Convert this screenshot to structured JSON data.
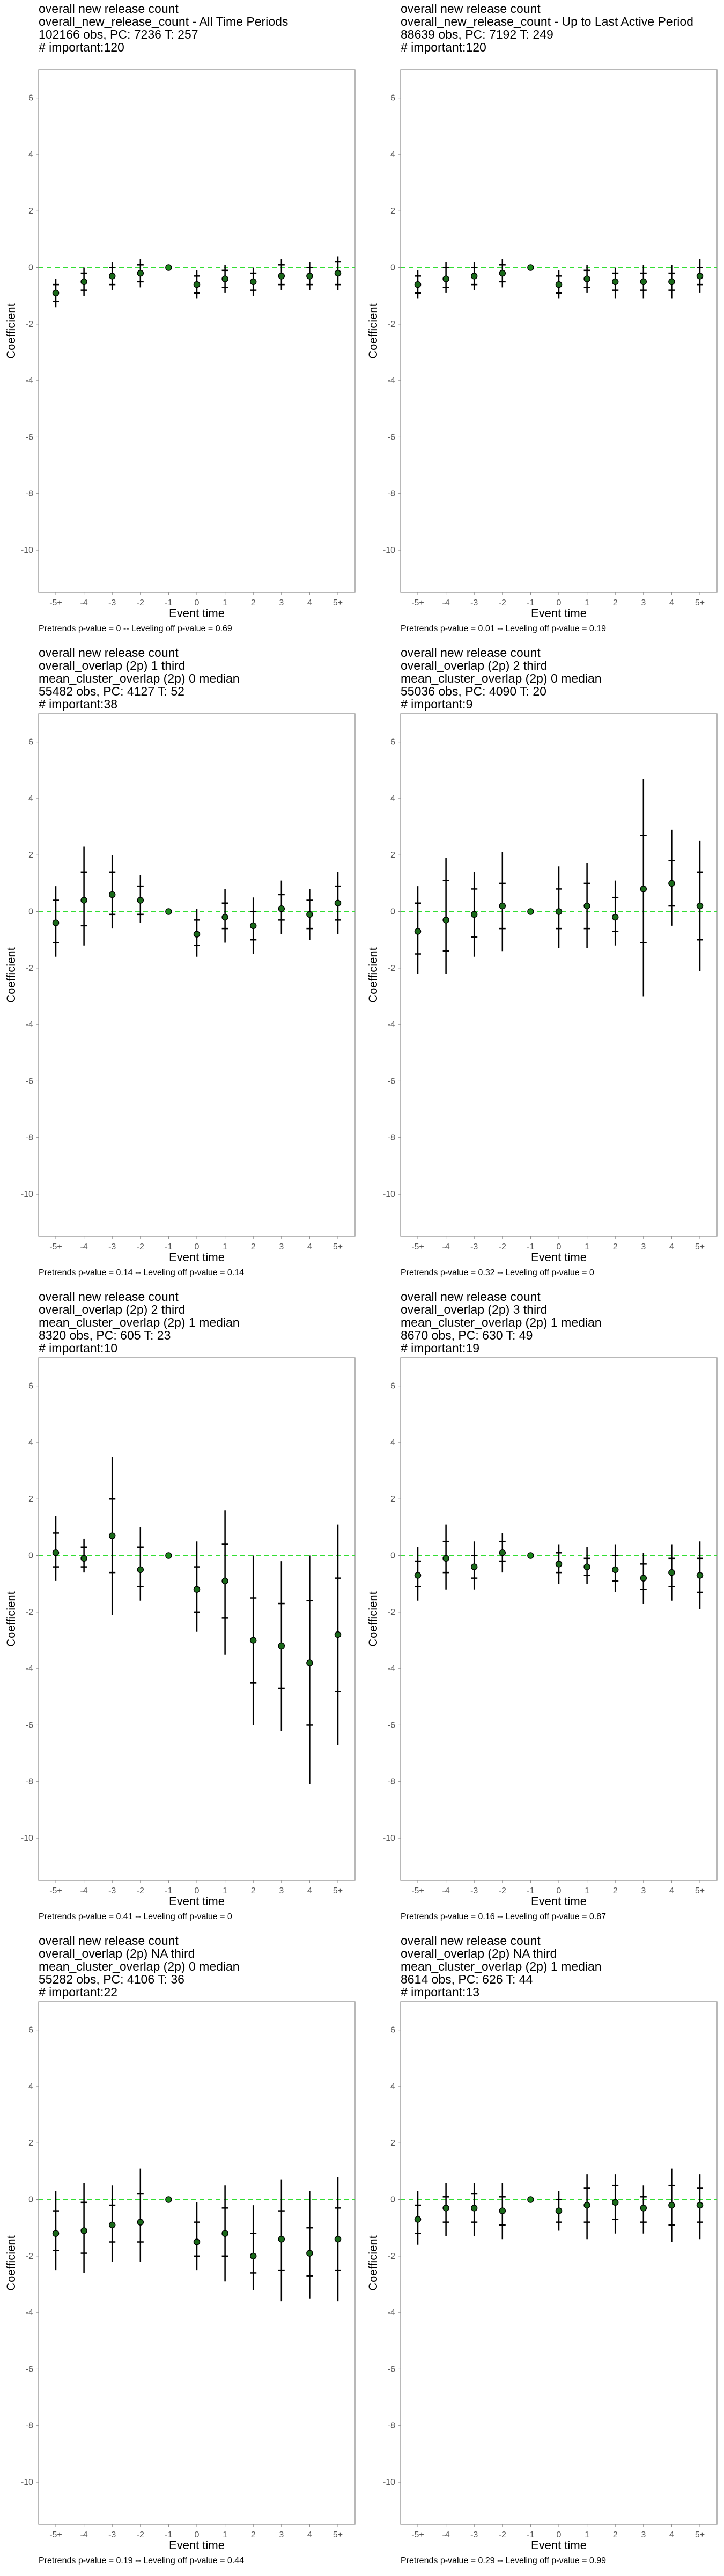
{
  "footer_labels": {
    "pretrends": "Pretrends p-value = ",
    "separator": " -- ",
    "leveling": "Leveling off p-value = "
  },
  "colors": {
    "zero_line": "#33dd33",
    "point_default": "#000000",
    "point_ref": "#1a8a1a",
    "frame": "#888888"
  },
  "chart_data": [
    {
      "type": "scatter",
      "title_lines": [
        "overall new release count",
        "overall_new_release_count - All Time Periods",
        "102166 obs, PC: 7236 T: 257",
        "# important:120"
      ],
      "xlabel": "Event time",
      "ylabel": "Coefficient",
      "categories": [
        "-5+",
        "-4",
        "-3",
        "-2",
        "-1",
        "0",
        "1",
        "2",
        "3",
        "4",
        "5+"
      ],
      "ylim": [
        -11.5,
        7
      ],
      "yticks": [
        6,
        4,
        2,
        0,
        -2,
        -4,
        -6,
        -8,
        -10
      ],
      "estimates": [
        -0.9,
        -0.5,
        -0.3,
        -0.2,
        0,
        -0.6,
        -0.4,
        -0.5,
        -0.3,
        -0.3,
        -0.2
      ],
      "ci_outer": [
        [
          -1.4,
          -0.4
        ],
        [
          -1.0,
          0.0
        ],
        [
          -0.8,
          0.2
        ],
        [
          -0.7,
          0.3
        ],
        [
          0,
          0
        ],
        [
          -1.1,
          -0.1
        ],
        [
          -0.9,
          0.1
        ],
        [
          -1.0,
          0.0
        ],
        [
          -0.8,
          0.3
        ],
        [
          -0.8,
          0.2
        ],
        [
          -0.8,
          0.4
        ]
      ],
      "ci_inner": [
        [
          -1.2,
          -0.6
        ],
        [
          -0.8,
          -0.2
        ],
        [
          -0.6,
          0.0
        ],
        [
          -0.5,
          0.1
        ],
        [
          0,
          0
        ],
        [
          -0.9,
          -0.3
        ],
        [
          -0.7,
          -0.1
        ],
        [
          -0.8,
          -0.2
        ],
        [
          -0.6,
          0.1
        ],
        [
          -0.6,
          0.0
        ],
        [
          -0.6,
          0.2
        ]
      ],
      "pretrends_p": "0",
      "leveling_p": "0.69"
    },
    {
      "type": "scatter",
      "title_lines": [
        "overall new release count",
        "overall_new_release_count - Up to Last Active Period",
        "88639 obs, PC: 7192 T: 249",
        "# important:120"
      ],
      "xlabel": "Event time",
      "ylabel": "Coefficient",
      "categories": [
        "-5+",
        "-4",
        "-3",
        "-2",
        "-1",
        "0",
        "1",
        "2",
        "3",
        "4",
        "5+"
      ],
      "ylim": [
        -11.5,
        7
      ],
      "yticks": [
        6,
        4,
        2,
        0,
        -2,
        -4,
        -6,
        -8,
        -10
      ],
      "estimates": [
        -0.6,
        -0.4,
        -0.3,
        -0.2,
        0,
        -0.6,
        -0.4,
        -0.5,
        -0.5,
        -0.5,
        -0.3
      ],
      "ci_outer": [
        [
          -1.1,
          -0.1
        ],
        [
          -0.9,
          0.2
        ],
        [
          -0.8,
          0.2
        ],
        [
          -0.7,
          0.3
        ],
        [
          0,
          0
        ],
        [
          -1.1,
          -0.1
        ],
        [
          -0.9,
          0.1
        ],
        [
          -1.1,
          0.0
        ],
        [
          -1.1,
          0.1
        ],
        [
          -1.1,
          0.1
        ],
        [
          -0.9,
          0.3
        ]
      ],
      "ci_inner": [
        [
          -0.9,
          -0.3
        ],
        [
          -0.7,
          0.0
        ],
        [
          -0.6,
          0.0
        ],
        [
          -0.5,
          0.1
        ],
        [
          0,
          0
        ],
        [
          -0.9,
          -0.3
        ],
        [
          -0.7,
          -0.1
        ],
        [
          -0.8,
          -0.2
        ],
        [
          -0.8,
          -0.2
        ],
        [
          -0.8,
          -0.2
        ],
        [
          -0.6,
          0.0
        ]
      ],
      "pretrends_p": "0.01",
      "leveling_p": "0.19"
    },
    {
      "type": "scatter",
      "title_lines": [
        "overall new release count",
        "overall_overlap (2p) 1 third",
        "mean_cluster_overlap (2p) 0 median",
        "55482 obs, PC: 4127 T: 52",
        "# important:38"
      ],
      "xlabel": "Event time",
      "ylabel": "Coefficient",
      "categories": [
        "-5+",
        "-4",
        "-3",
        "-2",
        "-1",
        "0",
        "1",
        "2",
        "3",
        "4",
        "5+"
      ],
      "ylim": [
        -11.5,
        7
      ],
      "yticks": [
        6,
        4,
        2,
        0,
        -2,
        -4,
        -6,
        -8,
        -10
      ],
      "estimates": [
        -0.4,
        0.4,
        0.6,
        0.4,
        0,
        -0.8,
        -0.2,
        -0.5,
        0.1,
        -0.1,
        0.3
      ],
      "ci_outer": [
        [
          -1.6,
          0.9
        ],
        [
          -1.2,
          2.3
        ],
        [
          -0.6,
          2.0
        ],
        [
          -0.4,
          1.3
        ],
        [
          0,
          0
        ],
        [
          -1.6,
          0.1
        ],
        [
          -1.1,
          0.8
        ],
        [
          -1.5,
          0.5
        ],
        [
          -0.8,
          1.1
        ],
        [
          -1.0,
          0.8
        ],
        [
          -0.8,
          1.4
        ]
      ],
      "ci_inner": [
        [
          -1.1,
          0.4
        ],
        [
          -0.5,
          1.4
        ],
        [
          -0.1,
          1.4
        ],
        [
          -0.1,
          0.9
        ],
        [
          0,
          0
        ],
        [
          -1.2,
          -0.3
        ],
        [
          -0.6,
          0.3
        ],
        [
          -1.0,
          0.0
        ],
        [
          -0.3,
          0.6
        ],
        [
          -0.6,
          0.4
        ],
        [
          -0.3,
          0.9
        ]
      ],
      "pretrends_p": "0.14",
      "leveling_p": "0.14"
    },
    {
      "type": "scatter",
      "title_lines": [
        "overall new release count",
        "overall_overlap (2p) 2 third",
        "mean_cluster_overlap (2p) 0 median",
        "55036 obs, PC: 4090 T: 20",
        "# important:9"
      ],
      "xlabel": "Event time",
      "ylabel": "Coefficient",
      "categories": [
        "-5+",
        "-4",
        "-3",
        "-2",
        "-1",
        "0",
        "1",
        "2",
        "3",
        "4",
        "5+"
      ],
      "ylim": [
        -11.5,
        7
      ],
      "yticks": [
        6,
        4,
        2,
        0,
        -2,
        -4,
        -6,
        -8,
        -10
      ],
      "estimates": [
        -0.7,
        -0.3,
        -0.1,
        0.2,
        0,
        0.0,
        0.2,
        -0.2,
        0.8,
        1.0,
        0.2
      ],
      "ci_outer": [
        [
          -2.2,
          0.9
        ],
        [
          -2.2,
          1.9
        ],
        [
          -1.6,
          1.4
        ],
        [
          -1.4,
          2.1
        ],
        [
          0,
          0
        ],
        [
          -1.3,
          1.6
        ],
        [
          -1.3,
          1.7
        ],
        [
          -1.2,
          1.1
        ],
        [
          -3.0,
          4.7
        ],
        [
          -0.5,
          2.9
        ],
        [
          -2.1,
          2.5
        ]
      ],
      "ci_inner": [
        [
          -1.5,
          0.3
        ],
        [
          -1.4,
          1.1
        ],
        [
          -0.9,
          0.8
        ],
        [
          -0.6,
          1.0
        ],
        [
          0,
          0
        ],
        [
          -0.6,
          0.8
        ],
        [
          -0.6,
          1.0
        ],
        [
          -0.7,
          0.5
        ],
        [
          -1.1,
          2.7
        ],
        [
          0.2,
          1.8
        ],
        [
          -1.0,
          1.4
        ]
      ],
      "pretrends_p": "0.32",
      "leveling_p": "0"
    },
    {
      "type": "scatter",
      "title_lines": [
        "overall new release count",
        "overall_overlap (2p) 2 third",
        "mean_cluster_overlap (2p) 1 median",
        "8320 obs, PC: 605 T: 23",
        "# important:10"
      ],
      "xlabel": "Event time",
      "ylabel": "Coefficient",
      "categories": [
        "-5+",
        "-4",
        "-3",
        "-2",
        "-1",
        "0",
        "1",
        "2",
        "3",
        "4",
        "5+"
      ],
      "ylim": [
        -11.5,
        7
      ],
      "yticks": [
        6,
        4,
        2,
        0,
        -2,
        -4,
        -6,
        -8,
        -10
      ],
      "estimates": [
        0.1,
        -0.1,
        0.7,
        -0.5,
        0,
        -1.2,
        -0.9,
        -3.0,
        -3.2,
        -3.8,
        -2.8
      ],
      "ci_outer": [
        [
          -0.9,
          1.4
        ],
        [
          -0.6,
          0.6
        ],
        [
          -2.1,
          3.5
        ],
        [
          -1.6,
          1.0
        ],
        [
          0,
          0
        ],
        [
          -2.7,
          0.5
        ],
        [
          -3.5,
          1.6
        ],
        [
          -6.0,
          0.0
        ],
        [
          -6.2,
          -0.2
        ],
        [
          -8.1,
          0.0
        ],
        [
          -6.7,
          1.1
        ]
      ],
      "ci_inner": [
        [
          -0.4,
          0.8
        ],
        [
          -0.4,
          0.3
        ],
        [
          -0.6,
          2.0
        ],
        [
          -1.1,
          0.3
        ],
        [
          0,
          0
        ],
        [
          -2.0,
          -0.4
        ],
        [
          -2.2,
          0.4
        ],
        [
          -4.5,
          -1.5
        ],
        [
          -4.7,
          -1.7
        ],
        [
          -6.0,
          -1.6
        ],
        [
          -4.8,
          -0.8
        ]
      ],
      "pretrends_p": "0.41",
      "leveling_p": "0"
    },
    {
      "type": "scatter",
      "title_lines": [
        "overall new release count",
        "overall_overlap (2p) 3 third",
        "mean_cluster_overlap (2p) 1 median",
        "8670 obs, PC: 630 T: 49",
        "# important:19"
      ],
      "xlabel": "Event time",
      "ylabel": "Coefficient",
      "categories": [
        "-5+",
        "-4",
        "-3",
        "-2",
        "-1",
        "0",
        "1",
        "2",
        "3",
        "4",
        "5+"
      ],
      "ylim": [
        -11.5,
        7
      ],
      "yticks": [
        6,
        4,
        2,
        0,
        -2,
        -4,
        -6,
        -8,
        -10
      ],
      "estimates": [
        -0.7,
        -0.1,
        -0.4,
        0.1,
        0,
        -0.3,
        -0.4,
        -0.5,
        -0.8,
        -0.6,
        -0.7
      ],
      "ci_outer": [
        [
          -1.6,
          0.3
        ],
        [
          -1.2,
          1.1
        ],
        [
          -1.2,
          0.5
        ],
        [
          -0.6,
          0.8
        ],
        [
          0,
          0
        ],
        [
          -1.0,
          0.4
        ],
        [
          -1.0,
          0.3
        ],
        [
          -1.3,
          0.4
        ],
        [
          -1.7,
          0.1
        ],
        [
          -1.6,
          0.4
        ],
        [
          -1.9,
          0.5
        ]
      ],
      "ci_inner": [
        [
          -1.1,
          -0.2
        ],
        [
          -0.6,
          0.5
        ],
        [
          -0.8,
          0.0
        ],
        [
          -0.2,
          0.5
        ],
        [
          0,
          0
        ],
        [
          -0.6,
          0.1
        ],
        [
          -0.7,
          -0.1
        ],
        [
          -0.9,
          0.0
        ],
        [
          -1.2,
          -0.3
        ],
        [
          -1.1,
          -0.1
        ],
        [
          -1.3,
          -0.1
        ]
      ],
      "pretrends_p": "0.16",
      "leveling_p": "0.87"
    },
    {
      "type": "scatter",
      "title_lines": [
        "overall new release count",
        "overall_overlap (2p) NA third",
        "mean_cluster_overlap (2p) 0 median",
        "55282 obs, PC: 4106 T: 36",
        "# important:22"
      ],
      "xlabel": "Event time",
      "ylabel": "Coefficient",
      "categories": [
        "-5+",
        "-4",
        "-3",
        "-2",
        "-1",
        "0",
        "1",
        "2",
        "3",
        "4",
        "5+"
      ],
      "ylim": [
        -11.5,
        7
      ],
      "yticks": [
        6,
        4,
        2,
        0,
        -2,
        -4,
        -6,
        -8,
        -10
      ],
      "estimates": [
        -1.2,
        -1.1,
        -0.9,
        -0.8,
        0,
        -1.5,
        -1.2,
        -2.0,
        -1.4,
        -1.9,
        -1.4
      ],
      "ci_outer": [
        [
          -2.5,
          0.3
        ],
        [
          -2.6,
          0.6
        ],
        [
          -2.2,
          0.5
        ],
        [
          -2.2,
          1.1
        ],
        [
          0,
          0
        ],
        [
          -2.5,
          -0.1
        ],
        [
          -2.9,
          0.5
        ],
        [
          -3.2,
          -0.2
        ],
        [
          -3.6,
          0.7
        ],
        [
          -3.5,
          0.3
        ],
        [
          -3.6,
          0.8
        ]
      ],
      "ci_inner": [
        [
          -1.8,
          -0.4
        ],
        [
          -1.9,
          -0.1
        ],
        [
          -1.5,
          -0.2
        ],
        [
          -1.5,
          0.2
        ],
        [
          0,
          0
        ],
        [
          -2.0,
          -0.8
        ],
        [
          -2.0,
          -0.3
        ],
        [
          -2.6,
          -1.2
        ],
        [
          -2.5,
          -0.4
        ],
        [
          -2.7,
          -1.0
        ],
        [
          -2.5,
          -0.3
        ]
      ],
      "pretrends_p": "0.19",
      "leveling_p": "0.44"
    },
    {
      "type": "scatter",
      "title_lines": [
        "overall new release count",
        "overall_overlap (2p) NA third",
        "mean_cluster_overlap (2p) 1 median",
        "8614 obs, PC: 626 T: 44",
        "# important:13"
      ],
      "xlabel": "Event time",
      "ylabel": "Coefficient",
      "categories": [
        "-5+",
        "-4",
        "-3",
        "-2",
        "-1",
        "0",
        "1",
        "2",
        "3",
        "4",
        "5+"
      ],
      "ylim": [
        -11.5,
        7
      ],
      "yticks": [
        6,
        4,
        2,
        0,
        -2,
        -4,
        -6,
        -8,
        -10
      ],
      "estimates": [
        -0.7,
        -0.3,
        -0.3,
        -0.4,
        0,
        -0.4,
        -0.2,
        -0.1,
        -0.3,
        -0.2,
        -0.2
      ],
      "ci_outer": [
        [
          -1.6,
          0.3
        ],
        [
          -1.3,
          0.6
        ],
        [
          -1.3,
          0.6
        ],
        [
          -1.4,
          0.6
        ],
        [
          0,
          0
        ],
        [
          -1.1,
          0.3
        ],
        [
          -1.4,
          0.9
        ],
        [
          -1.2,
          0.9
        ],
        [
          -1.2,
          0.5
        ],
        [
          -1.5,
          1.1
        ],
        [
          -1.4,
          0.9
        ]
      ],
      "ci_inner": [
        [
          -1.2,
          -0.2
        ],
        [
          -0.8,
          0.1
        ],
        [
          -0.8,
          0.2
        ],
        [
          -0.9,
          0.1
        ],
        [
          0,
          0
        ],
        [
          -0.8,
          0.0
        ],
        [
          -0.8,
          0.4
        ],
        [
          -0.7,
          0.5
        ],
        [
          -0.8,
          0.1
        ],
        [
          -0.9,
          0.5
        ],
        [
          -0.8,
          0.4
        ]
      ],
      "pretrends_p": "0.29",
      "leveling_p": "0.99"
    }
  ]
}
